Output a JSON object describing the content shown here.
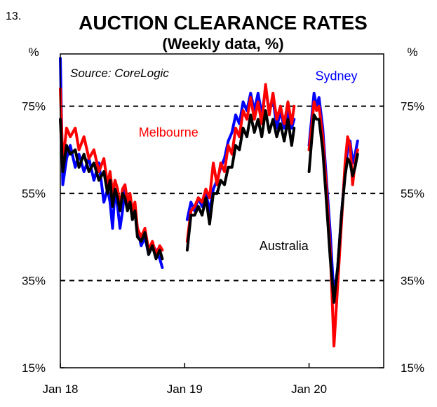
{
  "figure_number": "13.",
  "chart_data": {
    "type": "line",
    "title": "AUCTION CLEARANCE RATES",
    "subtitle": "(Weekly data, %)",
    "source": "Source:  CoreLogic",
    "left_unit": "%",
    "right_unit": "%",
    "ylim": [
      15,
      87
    ],
    "x_range": [
      2018.0,
      2020.6
    ],
    "y_ticks": [
      15,
      35,
      55,
      75
    ],
    "y_tick_labels": [
      "15%",
      "35%",
      "55%",
      "75%"
    ],
    "dashed_gridlines": [
      35,
      55,
      75
    ],
    "x_ticks": [
      {
        "x": 2018.0,
        "label": "Jan 18"
      },
      {
        "x": 2019.0,
        "label": "Jan 19"
      },
      {
        "x": 2020.0,
        "label": "Jan 20"
      }
    ],
    "series": [
      {
        "name": "Sydney",
        "color": "#0000ff",
        "label_anchor": {
          "x": 2020.05,
          "y": 81
        },
        "segments": [
          [
            [
              2018.0,
              86
            ],
            [
              2018.02,
              57
            ],
            [
              2018.05,
              63
            ],
            [
              2018.08,
              66
            ],
            [
              2018.12,
              61
            ],
            [
              2018.15,
              64
            ],
            [
              2018.19,
              60
            ],
            [
              2018.23,
              63
            ],
            [
              2018.27,
              58
            ],
            [
              2018.31,
              62
            ],
            [
              2018.35,
              53
            ],
            [
              2018.38,
              56
            ],
            [
              2018.4,
              53
            ],
            [
              2018.42,
              47
            ],
            [
              2018.44,
              56
            ],
            [
              2018.46,
              52
            ],
            [
              2018.48,
              47
            ],
            [
              2018.5,
              51
            ],
            [
              2018.52,
              56
            ],
            [
              2018.54,
              52
            ],
            [
              2018.56,
              54
            ],
            [
              2018.58,
              49
            ],
            [
              2018.6,
              52
            ],
            [
              2018.62,
              47
            ],
            [
              2018.65,
              43
            ],
            [
              2018.68,
              45
            ],
            [
              2018.71,
              41
            ],
            [
              2018.74,
              43
            ],
            [
              2018.77,
              42
            ],
            [
              2018.8,
              40
            ],
            [
              2018.82,
              38
            ]
          ],
          [
            [
              2019.02,
              49
            ],
            [
              2019.05,
              53
            ],
            [
              2019.08,
              51
            ],
            [
              2019.11,
              54
            ],
            [
              2019.14,
              52
            ],
            [
              2019.17,
              55
            ],
            [
              2019.2,
              51
            ],
            [
              2019.23,
              56
            ],
            [
              2019.26,
              58
            ],
            [
              2019.29,
              61
            ],
            [
              2019.32,
              63
            ],
            [
              2019.35,
              67
            ],
            [
              2019.38,
              69
            ],
            [
              2019.41,
              73
            ],
            [
              2019.44,
              71
            ],
            [
              2019.47,
              76
            ],
            [
              2019.5,
              74
            ],
            [
              2019.53,
              78
            ],
            [
              2019.56,
              74
            ],
            [
              2019.59,
              78
            ],
            [
              2019.62,
              73
            ],
            [
              2019.65,
              79
            ],
            [
              2019.68,
              74
            ],
            [
              2019.71,
              77
            ],
            [
              2019.74,
              70
            ],
            [
              2019.77,
              74
            ],
            [
              2019.8,
              70
            ],
            [
              2019.83,
              74
            ],
            [
              2019.86,
              70
            ],
            [
              2019.88,
              72
            ]
          ],
          [
            [
              2020.0,
              66
            ],
            [
              2020.02,
              72
            ],
            [
              2020.04,
              78
            ],
            [
              2020.06,
              75
            ],
            [
              2020.08,
              77
            ],
            [
              2020.11,
              70
            ],
            [
              2020.14,
              58
            ],
            [
              2020.17,
              46
            ],
            [
              2020.2,
              31
            ],
            [
              2020.23,
              38
            ],
            [
              2020.26,
              50
            ],
            [
              2020.29,
              60
            ],
            [
              2020.31,
              65
            ],
            [
              2020.33,
              67
            ],
            [
              2020.35,
              62
            ],
            [
              2020.37,
              64
            ],
            [
              2020.39,
              67
            ]
          ]
        ]
      },
      {
        "name": "Melbourne",
        "color": "#ff0000",
        "label_anchor": {
          "x": 2018.63,
          "y": 68
        },
        "segments": [
          [
            [
              2018.0,
              79
            ],
            [
              2018.02,
              62
            ],
            [
              2018.05,
              70
            ],
            [
              2018.08,
              68
            ],
            [
              2018.12,
              70
            ],
            [
              2018.15,
              65
            ],
            [
              2018.19,
              68
            ],
            [
              2018.23,
              63
            ],
            [
              2018.27,
              65
            ],
            [
              2018.31,
              60
            ],
            [
              2018.35,
              63
            ],
            [
              2018.38,
              57
            ],
            [
              2018.4,
              60
            ],
            [
              2018.42,
              55
            ],
            [
              2018.44,
              58
            ],
            [
              2018.46,
              56
            ],
            [
              2018.48,
              52
            ],
            [
              2018.5,
              56
            ],
            [
              2018.52,
              57
            ],
            [
              2018.54,
              53
            ],
            [
              2018.56,
              55
            ],
            [
              2018.58,
              51
            ],
            [
              2018.6,
              53
            ],
            [
              2018.62,
              47
            ],
            [
              2018.65,
              45
            ],
            [
              2018.68,
              47
            ],
            [
              2018.71,
              42
            ],
            [
              2018.74,
              44
            ],
            [
              2018.77,
              41
            ],
            [
              2018.8,
              43
            ],
            [
              2018.82,
              42
            ]
          ],
          [
            [
              2019.02,
              44
            ],
            [
              2019.05,
              51
            ],
            [
              2019.08,
              52
            ],
            [
              2019.11,
              54
            ],
            [
              2019.14,
              53
            ],
            [
              2019.17,
              56
            ],
            [
              2019.2,
              54
            ],
            [
              2019.23,
              62
            ],
            [
              2019.26,
              57
            ],
            [
              2019.29,
              62
            ],
            [
              2019.32,
              60
            ],
            [
              2019.35,
              66
            ],
            [
              2019.38,
              64
            ],
            [
              2019.41,
              70
            ],
            [
              2019.44,
              68
            ],
            [
              2019.47,
              74
            ],
            [
              2019.5,
              72
            ],
            [
              2019.53,
              77
            ],
            [
              2019.56,
              72
            ],
            [
              2019.59,
              76
            ],
            [
              2019.62,
              71
            ],
            [
              2019.65,
              80
            ],
            [
              2019.68,
              73
            ],
            [
              2019.71,
              78
            ],
            [
              2019.74,
              72
            ],
            [
              2019.77,
              75
            ],
            [
              2019.8,
              71
            ],
            [
              2019.83,
              76
            ],
            [
              2019.86,
              71
            ],
            [
              2019.88,
              75
            ]
          ],
          [
            [
              2020.0,
              65
            ],
            [
              2020.02,
              70
            ],
            [
              2020.04,
              76
            ],
            [
              2020.06,
              74
            ],
            [
              2020.08,
              75
            ],
            [
              2020.11,
              68
            ],
            [
              2020.14,
              56
            ],
            [
              2020.17,
              42
            ],
            [
              2020.2,
              20
            ],
            [
              2020.23,
              34
            ],
            [
              2020.26,
              48
            ],
            [
              2020.29,
              62
            ],
            [
              2020.31,
              68
            ],
            [
              2020.33,
              66
            ],
            [
              2020.35,
              57
            ],
            [
              2020.37,
              62
            ],
            [
              2020.39,
              65
            ]
          ]
        ]
      },
      {
        "name": "Australia",
        "color": "#000000",
        "label_anchor": {
          "x": 2019.6,
          "y": 42
        },
        "segments": [
          [
            [
              2018.0,
              72
            ],
            [
              2018.02,
              60
            ],
            [
              2018.05,
              66
            ],
            [
              2018.08,
              64
            ],
            [
              2018.12,
              65
            ],
            [
              2018.15,
              61
            ],
            [
              2018.19,
              64
            ],
            [
              2018.23,
              60
            ],
            [
              2018.27,
              62
            ],
            [
              2018.31,
              58
            ],
            [
              2018.35,
              60
            ],
            [
              2018.38,
              55
            ],
            [
              2018.4,
              58
            ],
            [
              2018.42,
              52
            ],
            [
              2018.44,
              56
            ],
            [
              2018.46,
              54
            ],
            [
              2018.48,
              51
            ],
            [
              2018.5,
              55
            ],
            [
              2018.52,
              54
            ],
            [
              2018.54,
              51
            ],
            [
              2018.56,
              53
            ],
            [
              2018.58,
              49
            ],
            [
              2018.6,
              51
            ],
            [
              2018.62,
              45
            ],
            [
              2018.65,
              44
            ],
            [
              2018.68,
              46
            ],
            [
              2018.71,
              41
            ],
            [
              2018.74,
              43
            ],
            [
              2018.77,
              40
            ],
            [
              2018.8,
              42
            ],
            [
              2018.82,
              40
            ]
          ],
          [
            [
              2019.02,
              42
            ],
            [
              2019.05,
              50
            ],
            [
              2019.08,
              50
            ],
            [
              2019.11,
              52
            ],
            [
              2019.14,
              50
            ],
            [
              2019.17,
              54
            ],
            [
              2019.2,
              48
            ],
            [
              2019.23,
              55
            ],
            [
              2019.26,
              55
            ],
            [
              2019.29,
              58
            ],
            [
              2019.32,
              57
            ],
            [
              2019.35,
              61
            ],
            [
              2019.38,
              61
            ],
            [
              2019.41,
              66
            ],
            [
              2019.44,
              65
            ],
            [
              2019.47,
              70
            ],
            [
              2019.5,
              68
            ],
            [
              2019.53,
              73
            ],
            [
              2019.56,
              69
            ],
            [
              2019.59,
              72
            ],
            [
              2019.62,
              68
            ],
            [
              2019.65,
              74
            ],
            [
              2019.68,
              69
            ],
            [
              2019.71,
              72
            ],
            [
              2019.74,
              68
            ],
            [
              2019.77,
              71
            ],
            [
              2019.8,
              67
            ],
            [
              2019.83,
              72
            ],
            [
              2019.86,
              66
            ],
            [
              2019.88,
              70
            ]
          ],
          [
            [
              2020.0,
              60
            ],
            [
              2020.02,
              67
            ],
            [
              2020.04,
              73
            ],
            [
              2020.06,
              72
            ],
            [
              2020.08,
              72
            ],
            [
              2020.11,
              65
            ],
            [
              2020.14,
              53
            ],
            [
              2020.17,
              40
            ],
            [
              2020.2,
              30
            ],
            [
              2020.23,
              38
            ],
            [
              2020.26,
              50
            ],
            [
              2020.29,
              59
            ],
            [
              2020.31,
              63
            ],
            [
              2020.33,
              62
            ],
            [
              2020.35,
              59
            ],
            [
              2020.37,
              61
            ],
            [
              2020.39,
              64
            ]
          ]
        ]
      }
    ]
  }
}
